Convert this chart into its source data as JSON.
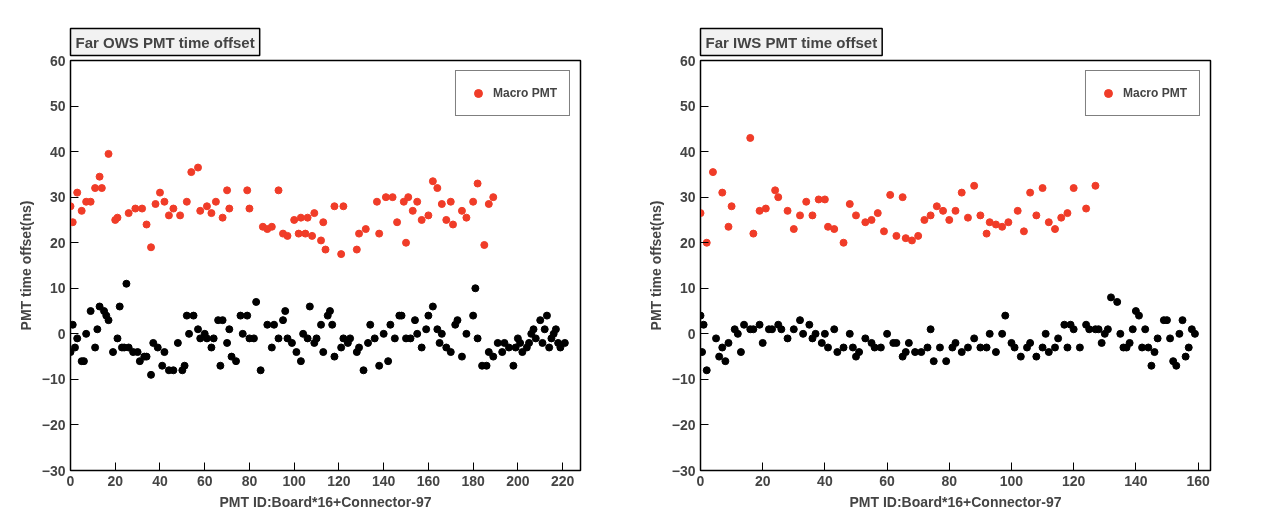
{
  "chart_data": [
    {
      "type": "scatter",
      "title": "Far OWS PMT time offset",
      "xlabel": "PMT ID:Board*16+Connector-97",
      "ylabel": "PMT time offset(ns)",
      "xlim": [
        0,
        228
      ],
      "xticks": [
        0,
        20,
        40,
        60,
        80,
        100,
        120,
        140,
        160,
        180,
        200,
        220
      ],
      "ylim": [
        -30,
        60
      ],
      "yticks": [
        -30,
        -20,
        -10,
        0,
        10,
        20,
        30,
        40,
        50,
        60
      ],
      "grid": false,
      "legend": "top right",
      "marker": "circle",
      "series": [
        {
          "name": "Macro PMT",
          "color": "#f03c28",
          "x": [
            0,
            1,
            3,
            5,
            7,
            9,
            11,
            13,
            14,
            17,
            20,
            21,
            26,
            29,
            32,
            34,
            36,
            38,
            40,
            42,
            44,
            46,
            49,
            52,
            54,
            57,
            58,
            61,
            63,
            65,
            68,
            70,
            71,
            79,
            80,
            86,
            88,
            90,
            93,
            95,
            97,
            100,
            102,
            103,
            105,
            106,
            108,
            109,
            112,
            113,
            114,
            118,
            121,
            122,
            128,
            129,
            132,
            137,
            138,
            141,
            144,
            146,
            149,
            150,
            151,
            153,
            155,
            157,
            160,
            162,
            164,
            166,
            168,
            170,
            171,
            175,
            177,
            180,
            182,
            185,
            187,
            189
          ],
          "values": [
            28,
            24.5,
            31,
            27,
            29,
            29,
            32,
            34.5,
            32,
            39.5,
            25,
            25.5,
            26.5,
            27.5,
            27.5,
            24,
            19,
            28.5,
            31,
            29,
            26,
            27.5,
            26,
            29,
            35.5,
            36.5,
            27,
            28,
            26.5,
            29,
            25.5,
            31.5,
            27.5,
            31.5,
            27.5,
            23.5,
            23,
            23.5,
            31.5,
            22,
            21.5,
            25,
            22,
            25.5,
            22,
            25.5,
            21.5,
            26.5,
            20.5,
            24.5,
            18.5,
            28,
            17.5,
            28,
            18.5,
            22,
            23,
            29,
            22,
            30,
            30,
            24.5,
            29,
            20,
            30,
            27,
            29,
            25,
            26,
            33.5,
            32,
            28.5,
            25,
            29,
            24,
            27,
            25.5,
            29,
            33,
            19.5,
            28.5,
            30
          ]
        },
        {
          "color": "#000000",
          "x": [
            0,
            1,
            2,
            3,
            5,
            6,
            7,
            9,
            11,
            12,
            13,
            15,
            16,
            17,
            19,
            21,
            22,
            23,
            24,
            25,
            26,
            28,
            30,
            31,
            33,
            34,
            36,
            37,
            39,
            41,
            42,
            44,
            46,
            48,
            50,
            51,
            52,
            53,
            55,
            57,
            58,
            60,
            61,
            63,
            64,
            66,
            67,
            68,
            70,
            71,
            72,
            74,
            76,
            77,
            79,
            80,
            82,
            83,
            85,
            88,
            90,
            91,
            93,
            95,
            96,
            97,
            99,
            101,
            103,
            104,
            106,
            107,
            109,
            110,
            112,
            113,
            115,
            116,
            117,
            118,
            121,
            122,
            124,
            125,
            128,
            129,
            131,
            133,
            134,
            136,
            138,
            140,
            142,
            143,
            145,
            147,
            148,
            150,
            152,
            154,
            155,
            157,
            159,
            160,
            162,
            164,
            165,
            166,
            168,
            170,
            172,
            173,
            175,
            177,
            180,
            181,
            182,
            184,
            186,
            187,
            189,
            191,
            193,
            194,
            196,
            198,
            199,
            200,
            201,
            202,
            204,
            205,
            206,
            207,
            208,
            210,
            211,
            212,
            213,
            214,
            215,
            216,
            217,
            218,
            219,
            221
          ],
          "values": [
            -4,
            2,
            -3,
            -1,
            -6,
            -6,
            0,
            5,
            -3,
            1,
            6,
            5,
            4,
            3,
            -4,
            -1,
            6,
            -3,
            -3,
            11,
            -3,
            -4,
            -4,
            -6,
            -5,
            -5,
            -9,
            -2,
            -3,
            -7,
            -4,
            -8,
            -8,
            -2,
            -8,
            -7,
            4,
            0,
            4,
            1,
            -1,
            0,
            -1,
            -3,
            -1,
            3,
            -7,
            3,
            -2,
            1,
            -5,
            -6,
            4,
            0,
            4,
            -1,
            -1,
            7,
            -8,
            2,
            -3,
            2,
            -1,
            3,
            5,
            -1,
            -2,
            -4,
            -6,
            0,
            -1,
            6,
            -2,
            -1,
            2,
            -4,
            4,
            5,
            2,
            -5,
            -3,
            -1,
            -2,
            -1,
            -4,
            -3,
            -8,
            -2,
            2,
            -1,
            -7,
            0,
            -6,
            2,
            -1,
            4,
            4,
            -1,
            -1,
            3,
            0,
            -3,
            1,
            4,
            6,
            1,
            -2,
            0,
            -3,
            -4,
            2,
            3,
            -5,
            0,
            4,
            10,
            -1,
            -7,
            -7,
            -4,
            -5,
            -2,
            -4,
            -2,
            -3,
            -7,
            -3,
            -1,
            -2,
            -4,
            -3,
            -2,
            0,
            1,
            -1,
            3,
            -2,
            1,
            4,
            -3,
            -1,
            0,
            1,
            -2,
            -3,
            -2
          ]
        }
      ]
    },
    {
      "type": "scatter",
      "title": "Far IWS PMT time offset",
      "xlabel": "PMT ID:Board*16+Connector-97",
      "ylabel": "PMT time offset(ns)",
      "xlim": [
        0,
        164
      ],
      "xticks": [
        0,
        20,
        40,
        60,
        80,
        100,
        120,
        140,
        160
      ],
      "ylim": [
        -30,
        60
      ],
      "yticks": [
        -30,
        -20,
        -10,
        0,
        10,
        20,
        30,
        40,
        50,
        60
      ],
      "grid": false,
      "legend": "top right",
      "marker": "circle",
      "series": [
        {
          "name": "Macro PMT",
          "color": "#f03c28",
          "x": [
            0,
            2,
            4,
            7,
            9,
            10,
            16,
            17,
            19,
            21,
            24,
            25,
            28,
            30,
            32,
            34,
            36,
            38,
            40,
            41,
            43,
            46,
            48,
            50,
            53,
            55,
            57,
            59,
            61,
            63,
            65,
            66,
            68,
            70,
            72,
            74,
            76,
            78,
            80,
            82,
            84,
            86,
            88,
            90,
            92,
            93,
            95,
            97,
            99,
            102,
            104,
            106,
            108,
            110,
            112,
            114,
            116,
            118,
            120,
            124,
            127
          ],
          "values": [
            26.5,
            20,
            35.5,
            31,
            23.5,
            28,
            43,
            22,
            27,
            27.5,
            31.5,
            30,
            27,
            23,
            26,
            29,
            26,
            29.5,
            29.5,
            23.5,
            23,
            20,
            28.5,
            26,
            24.5,
            25,
            26.5,
            22.5,
            30.5,
            21.5,
            30,
            21,
            20.5,
            21.5,
            25,
            26,
            28,
            27,
            25,
            27,
            31,
            25.5,
            32.5,
            26,
            22,
            24.5,
            24,
            23.5,
            24.5,
            27,
            22.5,
            31,
            26,
            32,
            24.5,
            23,
            25.5,
            26.5,
            32,
            27.5,
            32.5
          ]
        },
        {
          "color": "#000000",
          "x": [
            0,
            0.5,
            1,
            2,
            5,
            6,
            7,
            8,
            9,
            11,
            12,
            13,
            14,
            16,
            17,
            19,
            20,
            22,
            23,
            25,
            26,
            28,
            30,
            32,
            33,
            35,
            36,
            37,
            39,
            40,
            41,
            43,
            44,
            46,
            48,
            49,
            50,
            51,
            53,
            55,
            56,
            58,
            60,
            62,
            63,
            65,
            66,
            67,
            69,
            71,
            73,
            74,
            75,
            77,
            79,
            81,
            82,
            84,
            86,
            88,
            90,
            92,
            93,
            95,
            97,
            98,
            100,
            101,
            103,
            105,
            106,
            108,
            110,
            111,
            112,
            114,
            115,
            117,
            118,
            119,
            120,
            122,
            124,
            125,
            127,
            128,
            129,
            130,
            131,
            132,
            134,
            135,
            136,
            137,
            138,
            139,
            140,
            141,
            142,
            143,
            144,
            145,
            146,
            147,
            149,
            150,
            151,
            152,
            153,
            154,
            155,
            156,
            157,
            158,
            159
          ],
          "values": [
            4,
            -4,
            2,
            -8,
            -1,
            -5,
            -3,
            -6,
            -2,
            1,
            0,
            -4,
            2,
            1,
            1,
            2,
            -2,
            1,
            1,
            2,
            1,
            -1,
            1,
            3,
            0,
            2,
            -1,
            0,
            -2,
            0,
            -3,
            1,
            -4,
            -3,
            0,
            -3,
            -5,
            -4,
            -1,
            -2,
            -3,
            -3,
            0,
            -2,
            -2,
            -5,
            -4,
            -2,
            -4,
            -4,
            -3,
            1,
            -6,
            -3,
            -6,
            -3,
            -2,
            -4,
            -3,
            -1,
            -3,
            -3,
            0,
            -4,
            0,
            4,
            -2,
            -3,
            -5,
            -3,
            -2,
            -5,
            -3,
            0,
            -4,
            -3,
            -1,
            2,
            -3,
            2,
            1,
            -3,
            2,
            1,
            1,
            1,
            -2,
            0,
            1,
            8,
            7,
            0,
            -3,
            -3,
            -2,
            1,
            5,
            4,
            -3,
            1,
            -3,
            -7,
            -4,
            -1,
            3,
            3,
            -1,
            -6,
            -7,
            0,
            3,
            -5,
            -3,
            1,
            0
          ]
        }
      ]
    }
  ]
}
